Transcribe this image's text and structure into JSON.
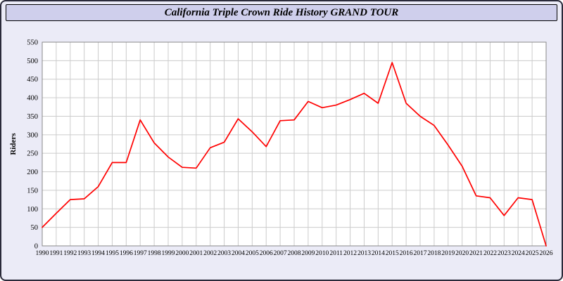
{
  "title": "California Triple Crown Ride History GRAND TOUR",
  "colors": {
    "page_background": "#ebebf7",
    "titlebar_background": "#cfcfec",
    "plot_background": "#ffffff",
    "grid_color": "#cccccc",
    "axis_color": "#888888",
    "line_color": "#ff0000",
    "text_color": "#000000"
  },
  "chart_data": {
    "type": "line",
    "title": "California Triple Crown Ride History GRAND TOUR",
    "xlabel": "",
    "ylabel": "Riders",
    "ylim": [
      0,
      550
    ],
    "ytick_step": 50,
    "grid": true,
    "legend": "none",
    "categories": [
      1990,
      1991,
      1992,
      1993,
      1994,
      1995,
      1996,
      1997,
      1998,
      1999,
      2000,
      2001,
      2002,
      2003,
      2004,
      2005,
      2006,
      2007,
      2008,
      2009,
      2010,
      2011,
      2012,
      2013,
      2014,
      2015,
      2016,
      2017,
      2018,
      2019,
      2020,
      2021,
      2022,
      2023,
      2024,
      2025,
      2026
    ],
    "values": [
      50,
      88,
      125,
      127,
      160,
      225,
      225,
      340,
      278,
      240,
      212,
      210,
      265,
      280,
      343,
      308,
      268,
      338,
      340,
      390,
      373,
      380,
      395,
      412,
      385,
      495,
      385,
      350,
      325,
      272,
      215,
      135,
      130,
      82,
      130,
      125,
      0
    ]
  }
}
